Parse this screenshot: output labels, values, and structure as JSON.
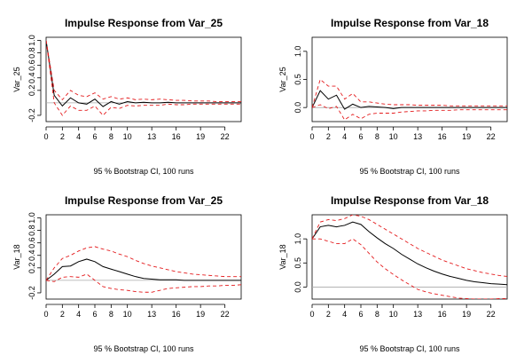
{
  "chart_data": [
    {
      "type": "line",
      "title": "Impulse Response from Var_25",
      "ylabel": "Var_25",
      "xlabel": "95 % Bootstrap CI,  100 runs",
      "xlim": [
        0,
        24
      ],
      "ylim": [
        -0.3,
        1.05
      ],
      "xticks": [
        "0",
        "2",
        "4",
        "6",
        "8",
        "10",
        "13",
        "16",
        "19",
        "22"
      ],
      "yticks": [
        "-0.2",
        "0.2",
        "0.4",
        "0.6",
        "0.8",
        "1.0"
      ],
      "zero_line": true,
      "grid": false,
      "x": [
        0,
        1,
        2,
        3,
        4,
        5,
        6,
        7,
        8,
        9,
        10,
        11,
        12,
        13,
        14,
        15,
        16,
        17,
        18,
        19,
        20,
        21,
        22,
        23,
        24
      ],
      "series": [
        {
          "role": "irf",
          "color": "#000000",
          "values": [
            1.0,
            0.12,
            -0.05,
            0.08,
            0.0,
            -0.02,
            0.06,
            -0.06,
            0.02,
            -0.02,
            0.02,
            0.0,
            0.01,
            0.0,
            0.0,
            0.01,
            0.0,
            0.0,
            0.0,
            0.0,
            0.0,
            0.0,
            0.0,
            0.0,
            0.0
          ]
        },
        {
          "role": "upper",
          "color": "#e41a1c",
          "values": [
            1.0,
            0.2,
            0.05,
            0.2,
            0.12,
            0.1,
            0.16,
            0.06,
            0.1,
            0.06,
            0.08,
            0.05,
            0.06,
            0.05,
            0.06,
            0.05,
            0.04,
            0.04,
            0.03,
            0.03,
            0.03,
            0.02,
            0.02,
            0.02,
            0.02
          ]
        },
        {
          "role": "lower",
          "color": "#e41a1c",
          "values": [
            1.0,
            0.0,
            -0.2,
            -0.05,
            -0.12,
            -0.12,
            -0.05,
            -0.2,
            -0.07,
            -0.09,
            -0.04,
            -0.05,
            -0.04,
            -0.04,
            -0.04,
            -0.02,
            -0.03,
            -0.03,
            -0.02,
            -0.02,
            -0.02,
            -0.02,
            -0.02,
            -0.02,
            -0.02
          ]
        }
      ]
    },
    {
      "type": "line",
      "title": "Impulse Response from Var_18",
      "ylabel": "Var_25",
      "xlabel": "95 % Bootstrap CI,  100 runs",
      "xlim": [
        0,
        24
      ],
      "ylim": [
        -0.25,
        1.25
      ],
      "xticks": [
        "0",
        "2",
        "4",
        "6",
        "8",
        "10",
        "13",
        "16",
        "19",
        "22"
      ],
      "yticks": [
        "0.0",
        "0.5",
        "1.0"
      ],
      "zero_line": true,
      "grid": false,
      "x": [
        0,
        1,
        2,
        3,
        4,
        5,
        6,
        7,
        8,
        9,
        10,
        11,
        12,
        13,
        14,
        15,
        16,
        17,
        18,
        19,
        20,
        21,
        22,
        23,
        24
      ],
      "series": [
        {
          "role": "irf",
          "color": "#000000",
          "values": [
            0.0,
            0.3,
            0.15,
            0.22,
            -0.03,
            0.06,
            0.0,
            0.02,
            0.01,
            0.0,
            -0.02,
            0.0,
            0.0,
            0.0,
            0.0,
            0.0,
            0.0,
            0.0,
            0.0,
            0.0,
            0.0,
            0.0,
            0.0,
            0.0,
            0.0
          ]
        },
        {
          "role": "upper",
          "color": "#e41a1c",
          "values": [
            0.0,
            0.5,
            0.38,
            0.38,
            0.15,
            0.25,
            0.1,
            0.1,
            0.08,
            0.06,
            0.05,
            0.05,
            0.05,
            0.04,
            0.04,
            0.04,
            0.04,
            0.03,
            0.03,
            0.03,
            0.03,
            0.03,
            0.03,
            0.03,
            0.03
          ]
        },
        {
          "role": "lower",
          "color": "#e41a1c",
          "values": [
            0.0,
            0.05,
            -0.02,
            0.02,
            -0.22,
            -0.12,
            -0.2,
            -0.12,
            -0.1,
            -0.1,
            -0.1,
            -0.08,
            -0.07,
            -0.06,
            -0.06,
            -0.05,
            -0.05,
            -0.05,
            -0.04,
            -0.04,
            -0.04,
            -0.04,
            -0.04,
            -0.04,
            -0.04
          ]
        }
      ]
    },
    {
      "type": "line",
      "title": "Impulse Response from Var_25",
      "ylabel": "Var_18",
      "xlabel": "95 % Bootstrap CI,  100 runs",
      "xlim": [
        0,
        24
      ],
      "ylim": [
        -0.3,
        1.05
      ],
      "xticks": [
        "0",
        "2",
        "4",
        "6",
        "8",
        "10",
        "13",
        "16",
        "19",
        "22"
      ],
      "yticks": [
        "-0.2",
        "0.2",
        "0.4",
        "0.6",
        "0.8",
        "1.0"
      ],
      "zero_line": true,
      "grid": false,
      "x": [
        0,
        1,
        2,
        3,
        4,
        5,
        6,
        7,
        8,
        9,
        10,
        11,
        12,
        13,
        14,
        15,
        16,
        17,
        18,
        19,
        20,
        21,
        22,
        23,
        24
      ],
      "series": [
        {
          "role": "irf",
          "color": "#000000",
          "values": [
            0.0,
            0.1,
            0.22,
            0.23,
            0.3,
            0.34,
            0.3,
            0.22,
            0.18,
            0.14,
            0.1,
            0.06,
            0.03,
            0.02,
            0.01,
            0.01,
            0.01,
            0.0,
            0.0,
            0.0,
            0.0,
            0.0,
            0.0,
            0.0,
            0.0
          ]
        },
        {
          "role": "upper",
          "color": "#e41a1c",
          "values": [
            0.0,
            0.2,
            0.35,
            0.4,
            0.47,
            0.52,
            0.54,
            0.5,
            0.47,
            0.42,
            0.38,
            0.32,
            0.27,
            0.23,
            0.2,
            0.17,
            0.14,
            0.12,
            0.1,
            0.09,
            0.08,
            0.07,
            0.06,
            0.06,
            0.06
          ]
        },
        {
          "role": "lower",
          "color": "#e41a1c",
          "values": [
            0.0,
            -0.02,
            0.05,
            0.06,
            0.05,
            0.1,
            0.0,
            -0.1,
            -0.13,
            -0.15,
            -0.16,
            -0.18,
            -0.19,
            -0.19,
            -0.16,
            -0.13,
            -0.12,
            -0.11,
            -0.1,
            -0.1,
            -0.09,
            -0.09,
            -0.08,
            -0.08,
            -0.07
          ]
        }
      ]
    },
    {
      "type": "line",
      "title": "Impulse Response from Var_18",
      "ylabel": "Var_18",
      "xlabel": "95 % Bootstrap CI,  100 runs",
      "xlim": [
        0,
        24
      ],
      "ylim": [
        -0.25,
        1.5
      ],
      "xticks": [
        "0",
        "2",
        "4",
        "6",
        "8",
        "10",
        "13",
        "16",
        "19",
        "22"
      ],
      "yticks": [
        "0.0",
        "0.5",
        "1.0"
      ],
      "zero_line": true,
      "grid": false,
      "x": [
        0,
        1,
        2,
        3,
        4,
        5,
        6,
        7,
        8,
        9,
        10,
        11,
        12,
        13,
        14,
        15,
        16,
        17,
        18,
        19,
        20,
        21,
        22,
        23,
        24
      ],
      "series": [
        {
          "role": "irf",
          "color": "#000000",
          "values": [
            1.0,
            1.25,
            1.28,
            1.25,
            1.28,
            1.35,
            1.3,
            1.15,
            1.02,
            0.9,
            0.8,
            0.68,
            0.58,
            0.48,
            0.4,
            0.33,
            0.27,
            0.22,
            0.18,
            0.14,
            0.11,
            0.09,
            0.07,
            0.06,
            0.05
          ]
        },
        {
          "role": "upper",
          "color": "#e41a1c",
          "values": [
            1.0,
            1.35,
            1.4,
            1.38,
            1.42,
            1.5,
            1.47,
            1.4,
            1.3,
            1.2,
            1.1,
            1.0,
            0.9,
            0.8,
            0.72,
            0.64,
            0.56,
            0.5,
            0.44,
            0.38,
            0.34,
            0.3,
            0.27,
            0.24,
            0.22
          ]
        },
        {
          "role": "lower",
          "color": "#e41a1c",
          "values": [
            1.0,
            1.0,
            0.95,
            0.9,
            0.9,
            1.0,
            0.88,
            0.7,
            0.52,
            0.38,
            0.26,
            0.15,
            0.05,
            -0.05,
            -0.1,
            -0.14,
            -0.17,
            -0.2,
            -0.23,
            -0.24,
            -0.25,
            -0.25,
            -0.25,
            -0.24,
            -0.24
          ]
        }
      ]
    }
  ]
}
